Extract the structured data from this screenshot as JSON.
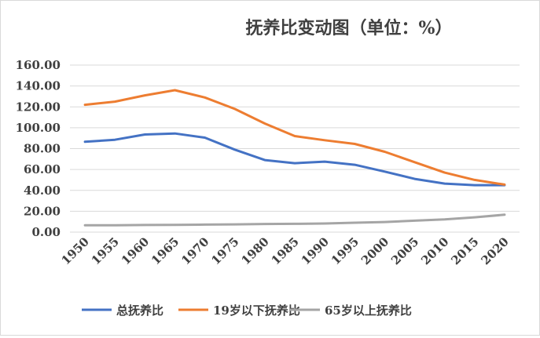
{
  "chart_data": {
    "type": "line",
    "title": "抚养比变动图（单位：%）",
    "xlabel": "",
    "ylabel": "",
    "x": [
      "1950",
      "1955",
      "1960",
      "1965",
      "1970",
      "1975",
      "1980",
      "1985",
      "1990",
      "1995",
      "2000",
      "2005",
      "2010",
      "2015",
      "2020"
    ],
    "ylim": [
      0,
      160
    ],
    "yticks": [
      "0.00",
      "20.00",
      "40.00",
      "60.00",
      "80.00",
      "100.00",
      "120.00",
      "140.00",
      "160.00"
    ],
    "grid": true,
    "legend_position": "bottom",
    "series": [
      {
        "name": "总抚养比",
        "color": "#4472C4",
        "values": [
          86.5,
          88.5,
          93.5,
          94.5,
          90.5,
          79.0,
          69.0,
          66.0,
          67.5,
          64.5,
          58.0,
          51.0,
          46.5,
          45.0,
          45.0
        ]
      },
      {
        "name": "19岁以下抚养比",
        "color": "#ED7D31",
        "values": [
          122.0,
          125.0,
          131.0,
          136.0,
          129.0,
          118.0,
          104.0,
          92.0,
          88.0,
          84.5,
          77.0,
          67.0,
          57.0,
          50.0,
          45.5
        ]
      },
      {
        "name": "65岁以上抚养比",
        "color": "#A5A5A5",
        "values": [
          6.5,
          6.5,
          6.8,
          7.0,
          7.2,
          7.4,
          7.8,
          8.0,
          8.3,
          9.0,
          9.7,
          11.0,
          12.2,
          14.2,
          16.7
        ]
      }
    ]
  }
}
